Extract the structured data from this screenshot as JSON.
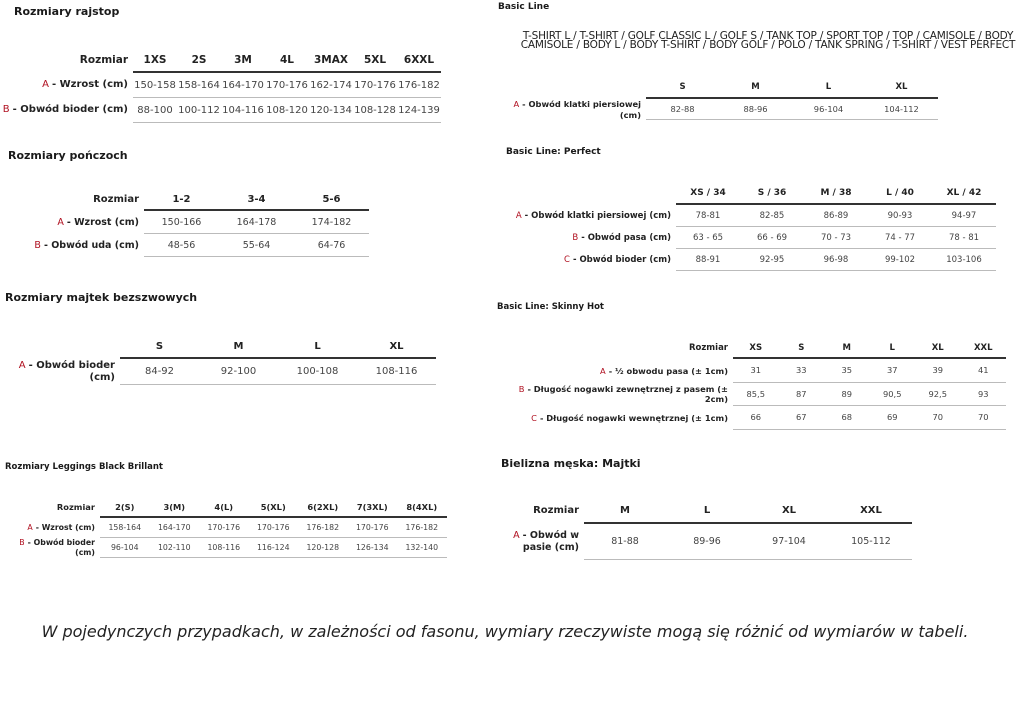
{
  "accent_color": "#b01020",
  "tables": [
    {
      "title": "Rozmiary rajstop",
      "header_label": "Rozmiar",
      "columns": [
        "1XS",
        "2S",
        "3M",
        "4L",
        "3MAX",
        "5XL",
        "6XXL"
      ],
      "rows": [
        {
          "letter": "A",
          "label": "- Wzrost (cm)",
          "values": [
            "150-158",
            "158-164",
            "164-170",
            "170-176",
            "162-174",
            "170-176",
            "176-182"
          ]
        },
        {
          "letter": "B",
          "label": "- Obwód bioder (cm)",
          "values": [
            "88-100",
            "100-112",
            "104-116",
            "108-120",
            "120-134",
            "108-128",
            "124-139"
          ]
        }
      ]
    },
    {
      "title": "Rozmiary pończoch",
      "header_label": "Rozmiar",
      "columns": [
        "1-2",
        "3-4",
        "5-6"
      ],
      "rows": [
        {
          "letter": "A",
          "label": "- Wzrost (cm)",
          "values": [
            "150-166",
            "164-178",
            "174-182"
          ]
        },
        {
          "letter": "B",
          "label": "- Obwód uda (cm)",
          "values": [
            "48-56",
            "55-64",
            "64-76"
          ]
        }
      ]
    },
    {
      "title": "Rozmiary majtek bezszwowych",
      "header_label": "",
      "columns": [
        "S",
        "M",
        "L",
        "XL"
      ],
      "rows": [
        {
          "letter": "A",
          "label": "- Obwód bioder (cm)",
          "values": [
            "84-92",
            "92-100",
            "100-108",
            "108-116"
          ]
        }
      ]
    },
    {
      "title": "Rozmiary Leggings Black Brillant",
      "header_label": "Rozmiar",
      "columns": [
        "2(S)",
        "3(M)",
        "4(L)",
        "5(XL)",
        "6(2XL)",
        "7(3XL)",
        "8(4XL)"
      ],
      "rows": [
        {
          "letter": "A",
          "label": "- Wzrost (cm)",
          "values": [
            "158-164",
            "164-170",
            "170-176",
            "170-176",
            "176-182",
            "170-176",
            "176-182"
          ]
        },
        {
          "letter": "B",
          "label": "- Obwód bioder (cm)",
          "values": [
            "96-104",
            "102-110",
            "108-116",
            "116-124",
            "120-128",
            "126-134",
            "132-140"
          ]
        }
      ]
    },
    {
      "title": "Basic Line",
      "subtitle": [
        "T-SHIRT L / T-SHIRT / GOLF CLASSIC L / GOLF S / TANK TOP / SPORT TOP / TOP / CAMISOLE / BODY",
        "CAMISOLE / BODY L / BODY T-SHIRT / BODY GOLF / POLO / TANK SPRING / T-SHIRT / VEST PERFECT"
      ],
      "header_label": "",
      "columns": [
        "S",
        "M",
        "L",
        "XL"
      ],
      "rows": [
        {
          "letter": "A",
          "label": "- Obwód klatki piersiowej (cm)",
          "values": [
            "82-88",
            "88-96",
            "96-104",
            "104-112"
          ]
        }
      ]
    },
    {
      "title": "Basic Line: Perfect",
      "header_label": "",
      "columns": [
        "XS / 34",
        "S / 36",
        "M / 38",
        "L / 40",
        "XL / 42"
      ],
      "rows": [
        {
          "letter": "A",
          "label": "- Obwód klatki piersiowej (cm)",
          "values": [
            "78-81",
            "82-85",
            "86-89",
            "90-93",
            "94-97"
          ]
        },
        {
          "letter": "B",
          "label": "- Obwód pasa (cm)",
          "values": [
            "63 - 65",
            "66 - 69",
            "70 - 73",
            "74 - 77",
            "78 - 81"
          ]
        },
        {
          "letter": "C",
          "label": "- Obwód bioder (cm)",
          "values": [
            "88-91",
            "92-95",
            "96-98",
            "99-102",
            "103-106"
          ]
        }
      ]
    },
    {
      "title": "Basic Line: Skinny Hot",
      "header_label": "Rozmiar",
      "columns": [
        "XS",
        "S",
        "M",
        "L",
        "XL",
        "XXL"
      ],
      "rows": [
        {
          "letter": "A",
          "label": "- ½ obwodu pasa (± 1cm)",
          "values": [
            "31",
            "33",
            "35",
            "37",
            "39",
            "41"
          ]
        },
        {
          "letter": "B",
          "label": "- Długość nogawki zewnętrznej z pasem (± 2cm)",
          "values": [
            "85,5",
            "87",
            "89",
            "90,5",
            "92,5",
            "93"
          ]
        },
        {
          "letter": "C",
          "label": "- Długość nogawki wewnętrznej (± 1cm)",
          "values": [
            "66",
            "67",
            "68",
            "69",
            "70",
            "70"
          ]
        }
      ]
    },
    {
      "title": "Bielizna męska: Majtki",
      "header_label": "Rozmiar",
      "columns": [
        "M",
        "L",
        "XL",
        "XXL"
      ],
      "rows": [
        {
          "letter": "A",
          "label": "- Obwód w pasie (cm)",
          "values": [
            "81-88",
            "89-96",
            "97-104",
            "105-112"
          ]
        }
      ]
    }
  ],
  "footer_note": "W pojedynczych przypadkach, w zależności od fasonu, wymiary rzeczywiste mogą się różnić od wymiarów w tabeli."
}
